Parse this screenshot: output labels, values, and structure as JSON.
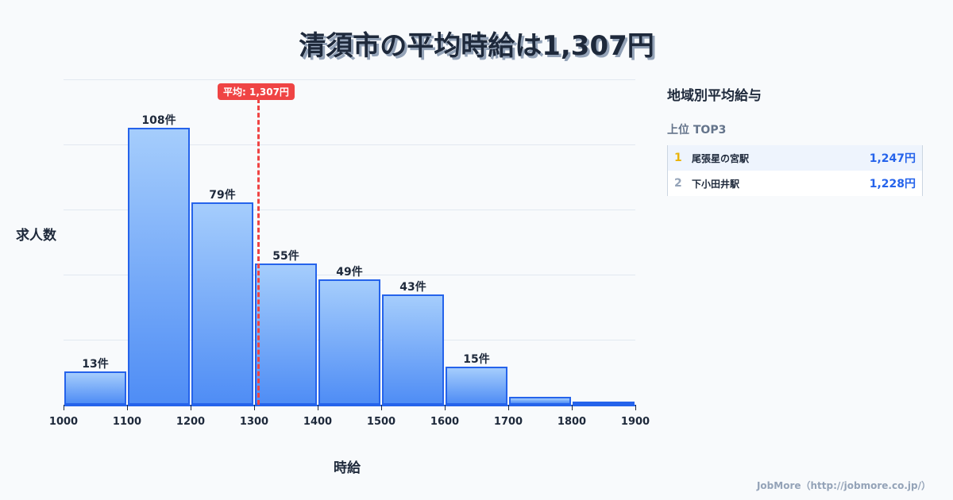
{
  "title": "清須市の平均時給は1,307円",
  "chart_data": {
    "type": "bar",
    "title": "清須市の平均時給は1,307円",
    "xlabel": "時給",
    "ylabel": "求人数",
    "categories": [
      "1000-1100",
      "1100-1200",
      "1200-1300",
      "1300-1400",
      "1400-1500",
      "1500-1600",
      "1600-1700",
      "1700-1800",
      "1800-1900"
    ],
    "values": [
      13,
      108,
      79,
      55,
      49,
      43,
      15,
      3,
      1
    ],
    "bar_labels": [
      "13件",
      "108件",
      "79件",
      "55件",
      "49件",
      "43件",
      "15件",
      "",
      ""
    ],
    "x_ticks": [
      "1000",
      "1100",
      "1200",
      "1300",
      "1400",
      "1500",
      "1600",
      "1700",
      "1800",
      "1900"
    ],
    "mean": 1307,
    "mean_label": "平均: 1,307円",
    "grid": true,
    "ylim": [
      0,
      125
    ]
  },
  "axis": {
    "ylabel": "求人数",
    "xlabel": "時給"
  },
  "sidebar": {
    "title": "地域別平均給与",
    "subtitle": "上位 TOP3",
    "ranks": [
      {
        "rank": "1",
        "name": "尾張星の宮駅",
        "value": "1,247円"
      },
      {
        "rank": "2",
        "name": "下小田井駅",
        "value": "1,228円"
      }
    ]
  },
  "footer": "JobMore（http://jobmore.co.jp/）",
  "colors": {
    "bar_border": "#2563eb",
    "bar_top": "#a5cdfc",
    "bar_bottom": "#4f8df5",
    "mean_line": "#ef4444",
    "rank1": "#eab308",
    "value": "#2563eb"
  }
}
